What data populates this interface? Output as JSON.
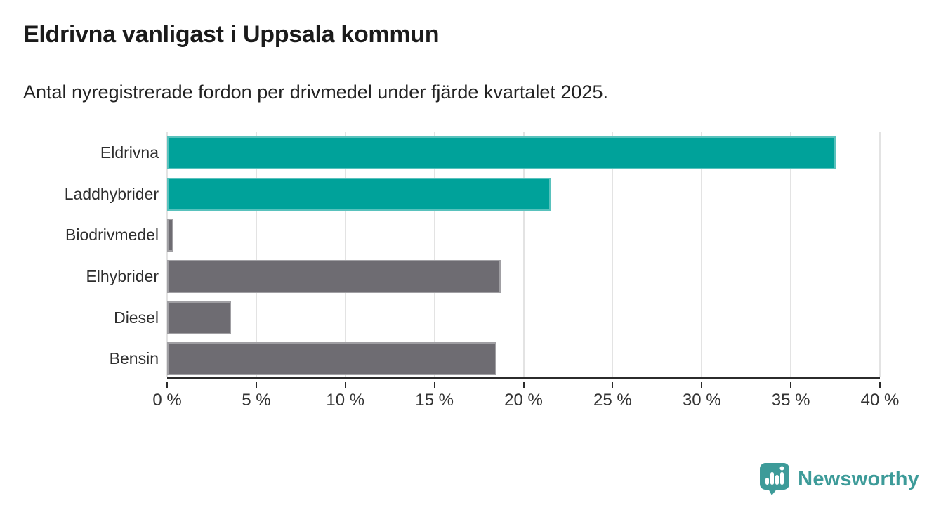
{
  "title": "Eldrivna vanligast i Uppsala kommun",
  "subtitle": "Antal nyregistrerade fordon per drivmedel under fjärde kvartalet 2025.",
  "chart_data": {
    "type": "bar",
    "orientation": "horizontal",
    "categories": [
      "Eldrivna",
      "Laddhybrider",
      "Biodrivmedel",
      "Elhybrider",
      "Diesel",
      "Bensin"
    ],
    "values": [
      37.5,
      21.5,
      0.35,
      18.7,
      3.6,
      18.5
    ],
    "unit": "%",
    "bar_colors": [
      "#00a29a",
      "#00a29a",
      "#6e6c72",
      "#6e6c72",
      "#6e6c72",
      "#6e6c72"
    ],
    "highlight_color": "#00a29a",
    "base_color": "#6e6c72",
    "xlim": [
      0,
      40
    ],
    "x_ticks": [
      0,
      5,
      10,
      15,
      20,
      25,
      30,
      35,
      40
    ],
    "x_tick_labels": [
      "0 %",
      "5 %",
      "10 %",
      "15 %",
      "20 %",
      "25 %",
      "30 %",
      "35 %",
      "40 %"
    ],
    "grid": true,
    "legend": false
  },
  "footer": {
    "brand": "Newsworthy",
    "brand_color": "#3d9b99",
    "icon": "newsworthy-speech-bubble-chart-icon"
  },
  "colors": {
    "grid": "#e3e3e3",
    "axis": "#2b2b2b",
    "label_text": "#2e2e2e",
    "title_text": "#1b1b1b"
  }
}
